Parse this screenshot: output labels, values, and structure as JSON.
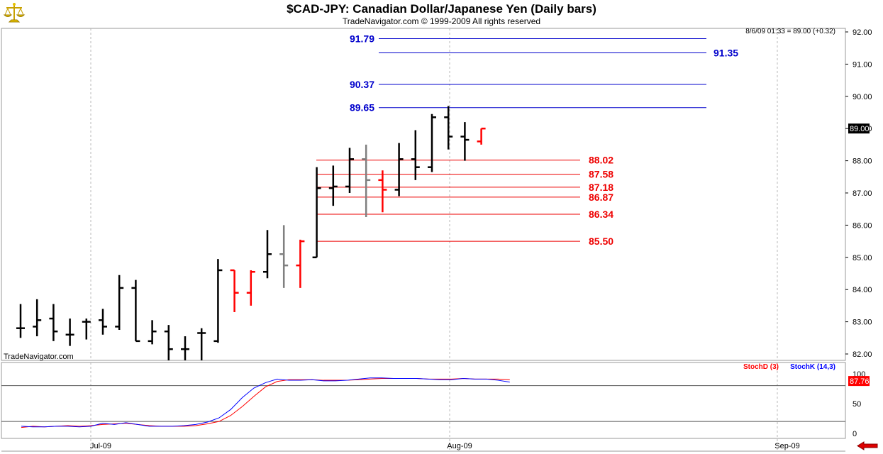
{
  "header": {
    "title": "$CAD-JPY:  Canadian Dollar/Japanese Yen  (Daily bars)",
    "copyright": "TradeNavigator.com © 1999-2009 All rights reserved",
    "logo_icon": "scales-of-justice-icon"
  },
  "readout": "8/6/09 01:33 = 89.00 (+0.32)",
  "watermark": "TradeNavigator.com",
  "colors": {
    "up_bar": "#000000",
    "down_bar": "#ff0000",
    "inside_bar": "#808080",
    "resistance": "#0000cc",
    "support": "#ee0000",
    "stoch_d": "#ff0000",
    "stoch_k": "#0000ff",
    "price_badge": "#000000",
    "stoch_badge": "#ff0000"
  },
  "chart_data": [
    {
      "type": "ohlc",
      "title": "$CAD-JPY:  Canadian Dollar/Japanese Yen  (Daily bars)",
      "x_ticks": [
        "Jul-09",
        "Aug-09",
        "Sep-09"
      ],
      "y_ticks": [
        "82.00",
        "83.00",
        "84.00",
        "85.00",
        "86.00",
        "87.00",
        "88.00",
        "89.00",
        "90.00",
        "91.00",
        "92.00"
      ],
      "ylim": [
        81.8,
        92.15
      ],
      "grid": "vertical dashed at month starts",
      "last_price": "89.00",
      "bars": [
        {
          "o": 82.8,
          "h": 83.55,
          "l": 82.5,
          "c": 82.8,
          "color": "up"
        },
        {
          "o": 82.85,
          "h": 83.7,
          "l": 82.55,
          "c": 83.05,
          "color": "up"
        },
        {
          "o": 83.1,
          "h": 83.55,
          "l": 82.4,
          "c": 82.7,
          "color": "up"
        },
        {
          "o": 82.6,
          "h": 83.1,
          "l": 82.25,
          "c": 82.6,
          "color": "up"
        },
        {
          "o": 83.0,
          "h": 83.1,
          "l": 82.45,
          "c": 83.0,
          "color": "up"
        },
        {
          "o": 83.05,
          "h": 83.4,
          "l": 82.6,
          "c": 82.85,
          "color": "up"
        },
        {
          "o": 82.85,
          "h": 84.45,
          "l": 82.75,
          "c": 84.05,
          "color": "up"
        },
        {
          "o": 84.05,
          "h": 84.3,
          "l": 82.4,
          "c": 82.4,
          "color": "up"
        },
        {
          "o": 82.4,
          "h": 83.05,
          "l": 82.3,
          "c": 82.7,
          "color": "up"
        },
        {
          "o": 82.7,
          "h": 82.9,
          "l": 81.8,
          "c": 82.15,
          "color": "up"
        },
        {
          "o": 82.15,
          "h": 82.55,
          "l": 81.8,
          "c": 82.15,
          "color": "up"
        },
        {
          "o": 82.65,
          "h": 82.8,
          "l": 81.8,
          "c": 82.65,
          "color": "up"
        },
        {
          "o": 82.4,
          "h": 84.95,
          "l": 82.35,
          "c": 84.6,
          "color": "up"
        },
        {
          "o": 84.6,
          "h": 84.6,
          "l": 83.3,
          "c": 83.9,
          "color": "down"
        },
        {
          "o": 83.9,
          "h": 84.6,
          "l": 83.5,
          "c": 84.55,
          "color": "down"
        },
        {
          "o": 84.55,
          "h": 85.85,
          "l": 84.35,
          "c": 85.1,
          "color": "up"
        },
        {
          "o": 85.1,
          "h": 86.0,
          "l": 84.05,
          "c": 84.75,
          "color": "inside"
        },
        {
          "o": 84.75,
          "h": 85.55,
          "l": 84.05,
          "c": 85.5,
          "color": "down"
        },
        {
          "o": 85.0,
          "h": 87.8,
          "l": 85.0,
          "c": 87.15,
          "color": "up"
        },
        {
          "o": 87.15,
          "h": 87.85,
          "l": 86.6,
          "c": 87.2,
          "color": "up"
        },
        {
          "o": 87.2,
          "h": 88.4,
          "l": 87.0,
          "c": 88.05,
          "color": "up"
        },
        {
          "o": 88.05,
          "h": 88.5,
          "l": 86.25,
          "c": 87.4,
          "color": "inside"
        },
        {
          "o": 87.4,
          "h": 87.7,
          "l": 86.4,
          "c": 87.1,
          "color": "down"
        },
        {
          "o": 87.1,
          "h": 88.55,
          "l": 86.9,
          "c": 88.05,
          "color": "up"
        },
        {
          "o": 88.05,
          "h": 88.95,
          "l": 87.4,
          "c": 87.8,
          "color": "up"
        },
        {
          "o": 87.8,
          "h": 89.45,
          "l": 87.65,
          "c": 89.35,
          "color": "up"
        },
        {
          "o": 89.35,
          "h": 89.7,
          "l": 88.35,
          "c": 88.75,
          "color": "up"
        },
        {
          "o": 88.75,
          "h": 89.2,
          "l": 88.0,
          "c": 88.65,
          "color": "up"
        },
        {
          "o": 88.6,
          "h": 89.0,
          "l": 88.5,
          "c": 89.0,
          "color": "down"
        }
      ],
      "resistance_levels": [
        "91.79",
        "91.35",
        "90.37",
        "89.65"
      ],
      "support_levels": [
        "88.02",
        "87.58",
        "87.18",
        "86.87",
        "86.34",
        "85.50"
      ]
    },
    {
      "type": "line",
      "y_ticks": [
        "0",
        "50",
        "100"
      ],
      "ylim": [
        -5,
        108
      ],
      "reference_lines": [
        20,
        80
      ],
      "last_value": "87.76",
      "series": [
        {
          "name": "StochD (3)",
          "values": [
            10,
            12,
            11,
            12,
            13,
            12,
            13,
            15,
            16,
            17,
            15,
            13,
            12,
            12,
            12,
            13,
            16,
            20,
            30,
            45,
            62,
            78,
            87,
            90,
            90,
            90,
            89,
            89,
            89,
            90,
            91,
            92,
            92,
            92,
            92,
            91,
            91,
            91,
            92,
            91,
            91,
            91,
            90
          ]
        },
        {
          "name": "StochK (14,3)",
          "values": [
            12,
            11,
            11,
            12,
            12,
            11,
            12,
            17,
            15,
            18,
            15,
            12,
            12,
            12,
            13,
            15,
            19,
            26,
            40,
            60,
            76,
            85,
            91,
            89,
            89,
            90,
            88,
            88,
            89,
            91,
            93,
            93,
            92,
            92,
            92,
            91,
            90,
            90,
            92,
            91,
            91,
            89,
            86
          ]
        }
      ]
    }
  ]
}
